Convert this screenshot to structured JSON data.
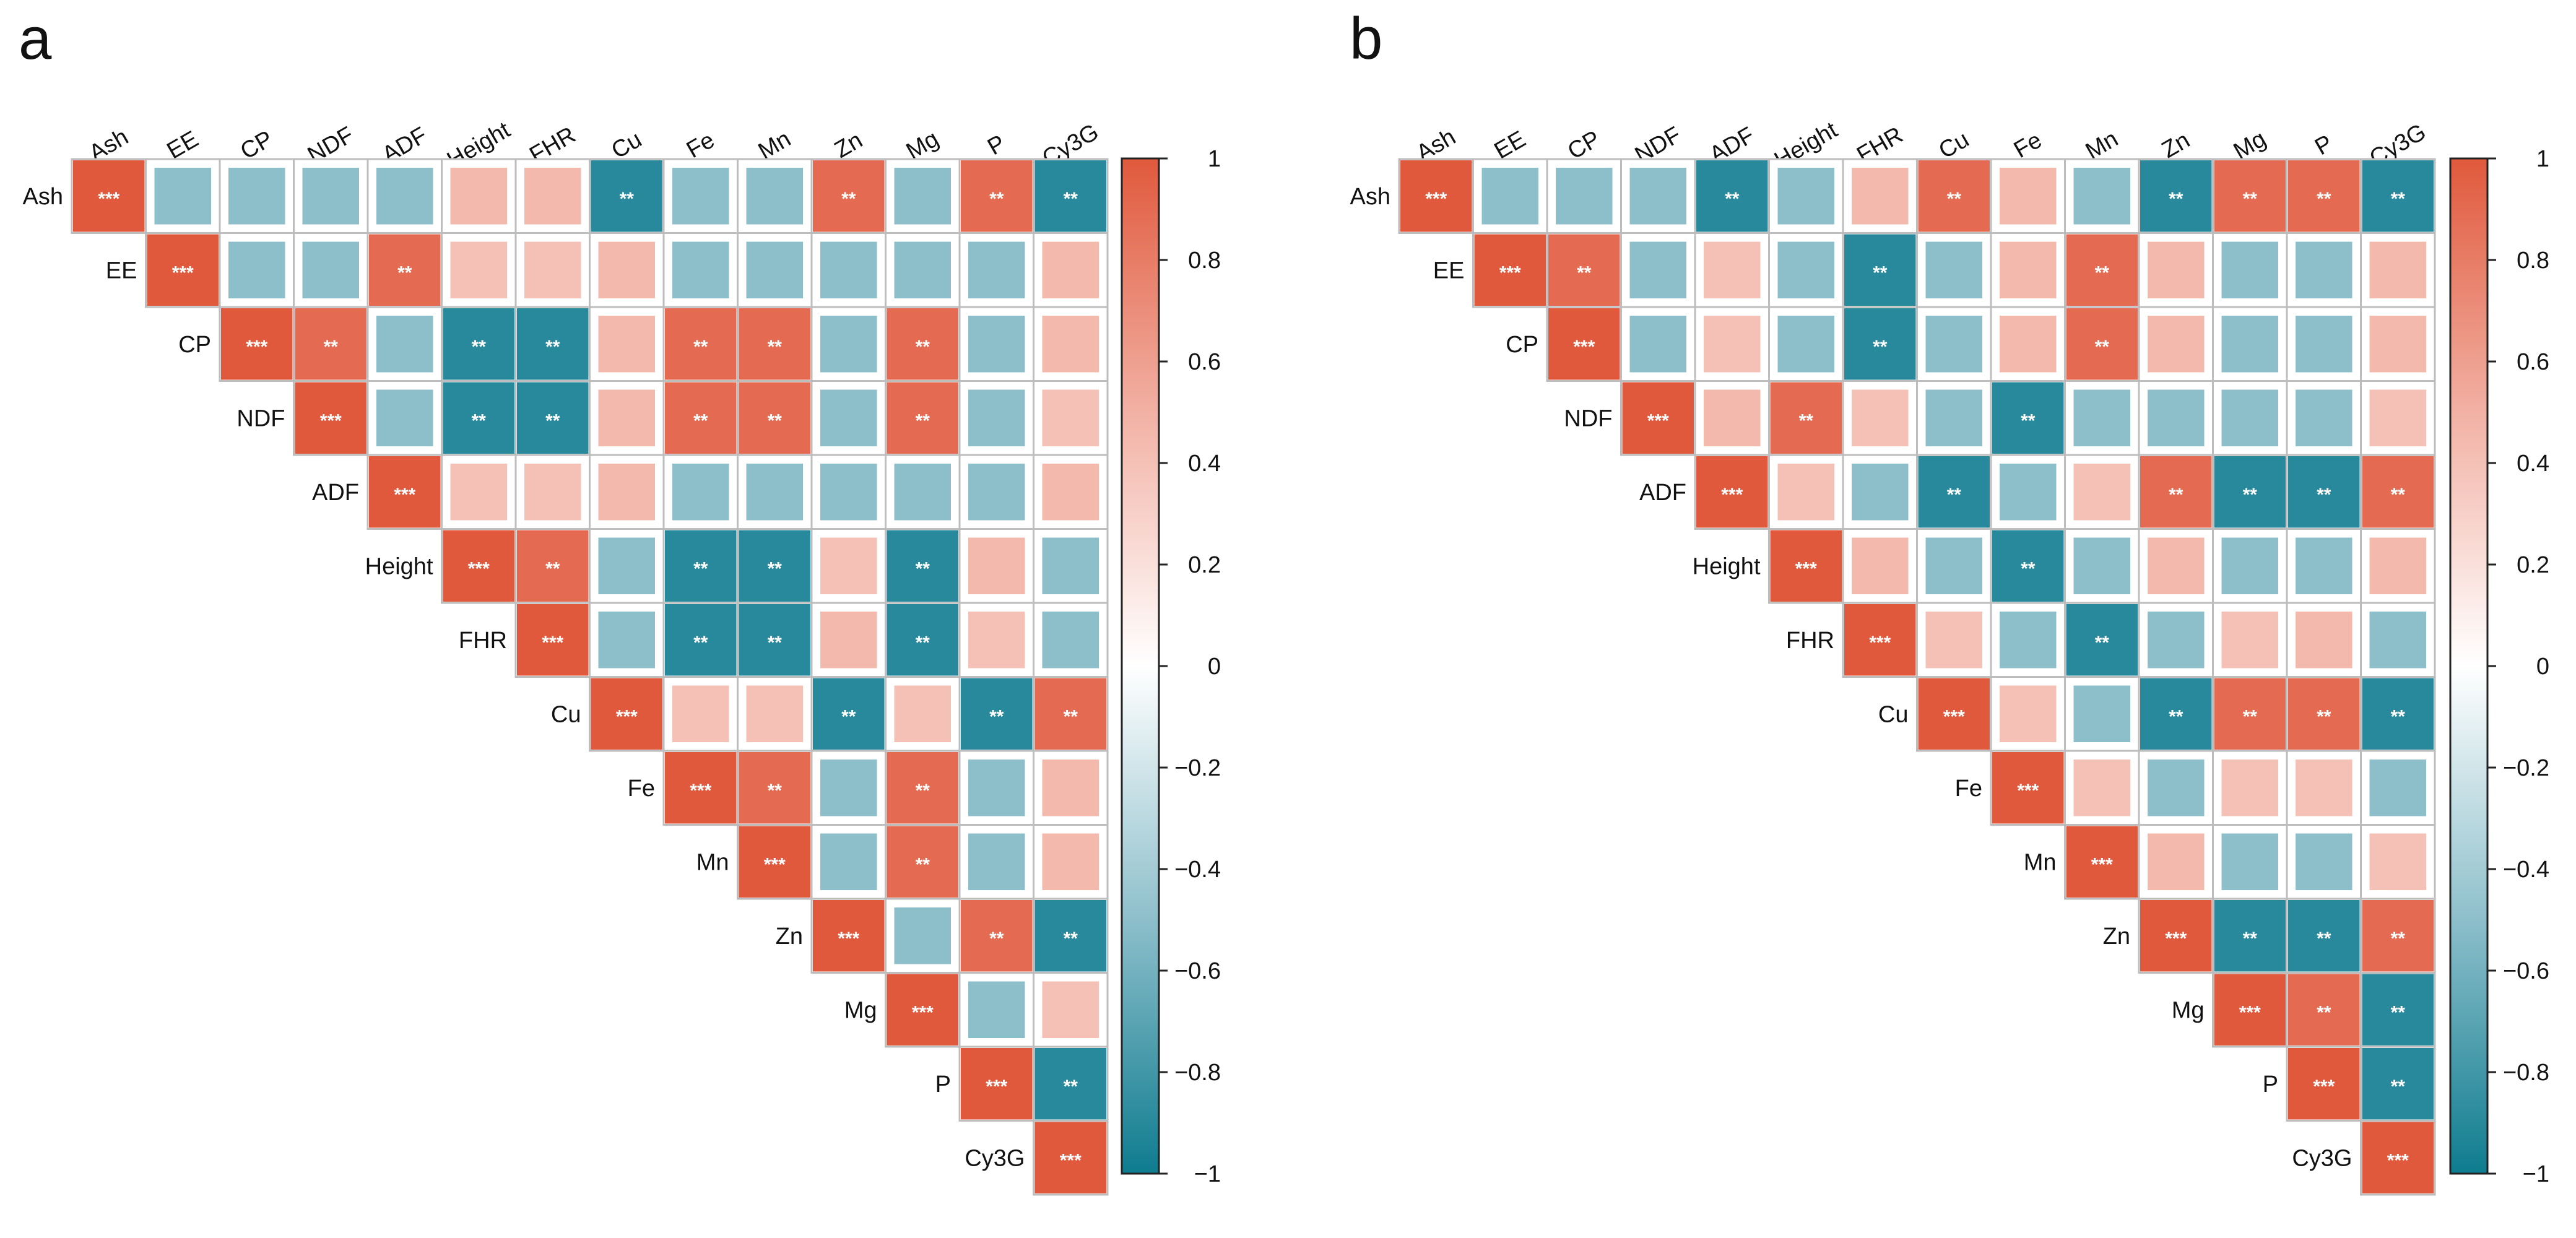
{
  "colors": {
    "strong_negative": "#0E7C8F",
    "weak_negative": "#8DBFCB",
    "zero": "#FFFFFF",
    "weak_positive": "#F2B1A4",
    "strong_positive": "#E0593C",
    "grid": "#BDBDBD",
    "star": "#FFFFFF"
  },
  "chart_data": [
    {
      "type": "heatmap",
      "panel": "a",
      "variables": [
        "Ash",
        "EE",
        "CP",
        "NDF",
        "ADF",
        "Height",
        "FHR",
        "Cu",
        "Fe",
        "Mn",
        "Zn",
        "Mg",
        "P",
        "Cy3G"
      ],
      "colorbar": {
        "range": [
          -1,
          1
        ],
        "ticks": [
          1,
          0.8,
          0.6,
          0.4,
          0.2,
          0,
          -0.2,
          -0.4,
          -0.6,
          -0.8,
          -1
        ],
        "tick_labels": [
          "1",
          "0.8",
          "0.6",
          "0.4",
          "0.2",
          "0",
          "−0.2",
          "−0.4",
          "−0.6",
          "−0.8",
          "−1"
        ]
      },
      "values": [
        [
          1,
          -0.5,
          -0.5,
          -0.5,
          -0.5,
          0.45,
          0.45,
          -0.9,
          -0.5,
          -0.5,
          0.9,
          -0.5,
          0.9,
          -0.9
        ],
        [
          null,
          1,
          -0.5,
          -0.5,
          0.9,
          0.4,
          0.4,
          0.45,
          -0.5,
          -0.5,
          -0.5,
          -0.5,
          -0.5,
          0.45
        ],
        [
          null,
          null,
          1,
          0.9,
          -0.5,
          -0.9,
          -0.9,
          0.45,
          0.9,
          0.9,
          -0.5,
          0.9,
          -0.5,
          0.45
        ],
        [
          null,
          null,
          null,
          1,
          -0.5,
          -0.9,
          -0.9,
          0.45,
          0.9,
          0.9,
          -0.5,
          0.9,
          -0.5,
          0.4
        ],
        [
          null,
          null,
          null,
          null,
          1,
          0.4,
          0.4,
          0.45,
          -0.5,
          -0.5,
          -0.5,
          -0.5,
          -0.5,
          0.45
        ],
        [
          null,
          null,
          null,
          null,
          null,
          1,
          0.9,
          -0.5,
          -0.9,
          -0.9,
          0.4,
          -0.9,
          0.45,
          -0.5
        ],
        [
          null,
          null,
          null,
          null,
          null,
          null,
          1,
          -0.5,
          -0.9,
          -0.9,
          0.45,
          -0.9,
          0.4,
          -0.5
        ],
        [
          null,
          null,
          null,
          null,
          null,
          null,
          null,
          1,
          0.4,
          0.4,
          -0.9,
          0.4,
          -0.9,
          0.9
        ],
        [
          null,
          null,
          null,
          null,
          null,
          null,
          null,
          null,
          1,
          0.9,
          -0.5,
          0.9,
          -0.5,
          0.45
        ],
        [
          null,
          null,
          null,
          null,
          null,
          null,
          null,
          null,
          null,
          1,
          -0.5,
          0.9,
          -0.5,
          0.45
        ],
        [
          null,
          null,
          null,
          null,
          null,
          null,
          null,
          null,
          null,
          null,
          1,
          -0.5,
          0.9,
          -0.9
        ],
        [
          null,
          null,
          null,
          null,
          null,
          null,
          null,
          null,
          null,
          null,
          null,
          1,
          -0.5,
          0.4
        ],
        [
          null,
          null,
          null,
          null,
          null,
          null,
          null,
          null,
          null,
          null,
          null,
          null,
          1,
          -0.9
        ],
        [
          null,
          null,
          null,
          null,
          null,
          null,
          null,
          null,
          null,
          null,
          null,
          null,
          null,
          1
        ]
      ],
      "significance": [
        [
          "***",
          "",
          "",
          "",
          "",
          "",
          "",
          "**",
          "",
          "",
          "**",
          "",
          "**",
          "**"
        ],
        [
          "",
          "***",
          "",
          "",
          "**",
          "",
          "",
          "",
          "",
          "",
          "",
          "",
          "",
          ""
        ],
        [
          "",
          "",
          "***",
          "**",
          "",
          "**",
          "**",
          "",
          "**",
          "**",
          "",
          "**",
          "",
          ""
        ],
        [
          "",
          "",
          "",
          "***",
          "",
          "**",
          "**",
          "",
          "**",
          "**",
          "",
          "**",
          "",
          ""
        ],
        [
          "",
          "",
          "",
          "",
          "***",
          "",
          "",
          "",
          "",
          "",
          "",
          "",
          "",
          ""
        ],
        [
          "",
          "",
          "",
          "",
          "",
          "***",
          "**",
          "",
          "**",
          "**",
          "",
          "**",
          "",
          ""
        ],
        [
          "",
          "",
          "",
          "",
          "",
          "",
          "***",
          "",
          "**",
          "**",
          "",
          "**",
          "",
          ""
        ],
        [
          "",
          "",
          "",
          "",
          "",
          "",
          "",
          "***",
          "",
          "",
          "**",
          "",
          "**",
          "**"
        ],
        [
          "",
          "",
          "",
          "",
          "",
          "",
          "",
          "",
          "***",
          "**",
          "",
          "**",
          "",
          ""
        ],
        [
          "",
          "",
          "",
          "",
          "",
          "",
          "",
          "",
          "",
          "***",
          "",
          "**",
          "",
          ""
        ],
        [
          "",
          "",
          "",
          "",
          "",
          "",
          "",
          "",
          "",
          "",
          "***",
          "",
          "**",
          "**"
        ],
        [
          "",
          "",
          "",
          "",
          "",
          "",
          "",
          "",
          "",
          "",
          "",
          "***",
          "",
          ""
        ],
        [
          "",
          "",
          "",
          "",
          "",
          "",
          "",
          "",
          "",
          "",
          "",
          "",
          "***",
          "**"
        ],
        [
          "",
          "",
          "",
          "",
          "",
          "",
          "",
          "",
          "",
          "",
          "",
          "",
          "",
          "***"
        ]
      ]
    },
    {
      "type": "heatmap",
      "panel": "b",
      "variables": [
        "Ash",
        "EE",
        "CP",
        "NDF",
        "ADF",
        "Height",
        "FHR",
        "Cu",
        "Fe",
        "Mn",
        "Zn",
        "Mg",
        "P",
        "Cy3G"
      ],
      "colorbar": {
        "range": [
          -1,
          1
        ],
        "ticks": [
          1,
          0.8,
          0.6,
          0.4,
          0.2,
          0,
          -0.2,
          -0.4,
          -0.6,
          -0.8,
          -1
        ],
        "tick_labels": [
          "1",
          "0.8",
          "0.6",
          "0.4",
          "0.2",
          "0",
          "−0.2",
          "−0.4",
          "−0.6",
          "−0.8",
          "−1"
        ]
      },
      "values": [
        [
          1,
          -0.5,
          -0.5,
          -0.5,
          -0.9,
          -0.5,
          0.45,
          0.9,
          0.45,
          -0.5,
          -0.9,
          0.9,
          0.9,
          -0.9
        ],
        [
          null,
          1,
          0.9,
          -0.5,
          0.4,
          -0.5,
          -0.9,
          -0.5,
          0.45,
          0.9,
          0.45,
          -0.5,
          -0.5,
          0.45
        ],
        [
          null,
          null,
          1,
          -0.5,
          0.4,
          -0.5,
          -0.9,
          -0.5,
          0.45,
          0.9,
          0.45,
          -0.5,
          -0.5,
          0.45
        ],
        [
          null,
          null,
          null,
          1,
          0.45,
          0.9,
          0.4,
          -0.5,
          -0.9,
          -0.5,
          -0.5,
          -0.5,
          -0.5,
          0.4
        ],
        [
          null,
          null,
          null,
          null,
          1,
          0.4,
          -0.5,
          -0.9,
          -0.5,
          0.4,
          0.9,
          -0.9,
          -0.9,
          0.9
        ],
        [
          null,
          null,
          null,
          null,
          null,
          1,
          0.45,
          -0.5,
          -0.9,
          -0.5,
          0.45,
          -0.5,
          -0.5,
          0.45
        ],
        [
          null,
          null,
          null,
          null,
          null,
          null,
          1,
          0.4,
          -0.5,
          -0.9,
          -0.5,
          0.4,
          0.45,
          -0.5
        ],
        [
          null,
          null,
          null,
          null,
          null,
          null,
          null,
          1,
          0.4,
          -0.5,
          -0.9,
          0.9,
          0.9,
          -0.9
        ],
        [
          null,
          null,
          null,
          null,
          null,
          null,
          null,
          null,
          1,
          0.4,
          -0.5,
          0.4,
          0.4,
          -0.5
        ],
        [
          null,
          null,
          null,
          null,
          null,
          null,
          null,
          null,
          null,
          1,
          0.45,
          -0.5,
          -0.5,
          0.4
        ],
        [
          null,
          null,
          null,
          null,
          null,
          null,
          null,
          null,
          null,
          null,
          1,
          -0.9,
          -0.9,
          0.9
        ],
        [
          null,
          null,
          null,
          null,
          null,
          null,
          null,
          null,
          null,
          null,
          null,
          1,
          0.9,
          -0.9
        ],
        [
          null,
          null,
          null,
          null,
          null,
          null,
          null,
          null,
          null,
          null,
          null,
          null,
          1,
          -0.9
        ],
        [
          null,
          null,
          null,
          null,
          null,
          null,
          null,
          null,
          null,
          null,
          null,
          null,
          null,
          1
        ]
      ],
      "significance": [
        [
          "***",
          "",
          "",
          "",
          "**",
          "",
          "",
          "**",
          "",
          "",
          "**",
          "**",
          "**",
          "**"
        ],
        [
          "",
          "***",
          "**",
          "",
          "",
          "",
          "**",
          "",
          "",
          "**",
          "",
          "",
          "",
          ""
        ],
        [
          "",
          "",
          "***",
          "",
          "",
          "",
          "**",
          "",
          "",
          "**",
          "",
          "",
          "",
          ""
        ],
        [
          "",
          "",
          "",
          "***",
          "",
          "**",
          "",
          "",
          "**",
          "",
          "",
          "",
          "",
          ""
        ],
        [
          "",
          "",
          "",
          "",
          "***",
          "",
          "",
          "**",
          "",
          "",
          "**",
          "**",
          "**",
          "**"
        ],
        [
          "",
          "",
          "",
          "",
          "",
          "***",
          "",
          "",
          "**",
          "",
          "",
          "",
          "",
          ""
        ],
        [
          "",
          "",
          "",
          "",
          "",
          "",
          "***",
          "",
          "",
          "**",
          "",
          "",
          "",
          ""
        ],
        [
          "",
          "",
          "",
          "",
          "",
          "",
          "",
          "***",
          "",
          "",
          "**",
          "**",
          "**",
          "**"
        ],
        [
          "",
          "",
          "",
          "",
          "",
          "",
          "",
          "",
          "***",
          "",
          "",
          "",
          "",
          ""
        ],
        [
          "",
          "",
          "",
          "",
          "",
          "",
          "",
          "",
          "",
          "***",
          "",
          "",
          "",
          ""
        ],
        [
          "",
          "",
          "",
          "",
          "",
          "",
          "",
          "",
          "",
          "",
          "***",
          "**",
          "**",
          "**"
        ],
        [
          "",
          "",
          "",
          "",
          "",
          "",
          "",
          "",
          "",
          "",
          "",
          "***",
          "**",
          "**"
        ],
        [
          "",
          "",
          "",
          "",
          "",
          "",
          "",
          "",
          "",
          "",
          "",
          "",
          "***",
          "**"
        ],
        [
          "",
          "",
          "",
          "",
          "",
          "",
          "",
          "",
          "",
          "",
          "",
          "",
          "",
          "***"
        ]
      ]
    }
  ]
}
